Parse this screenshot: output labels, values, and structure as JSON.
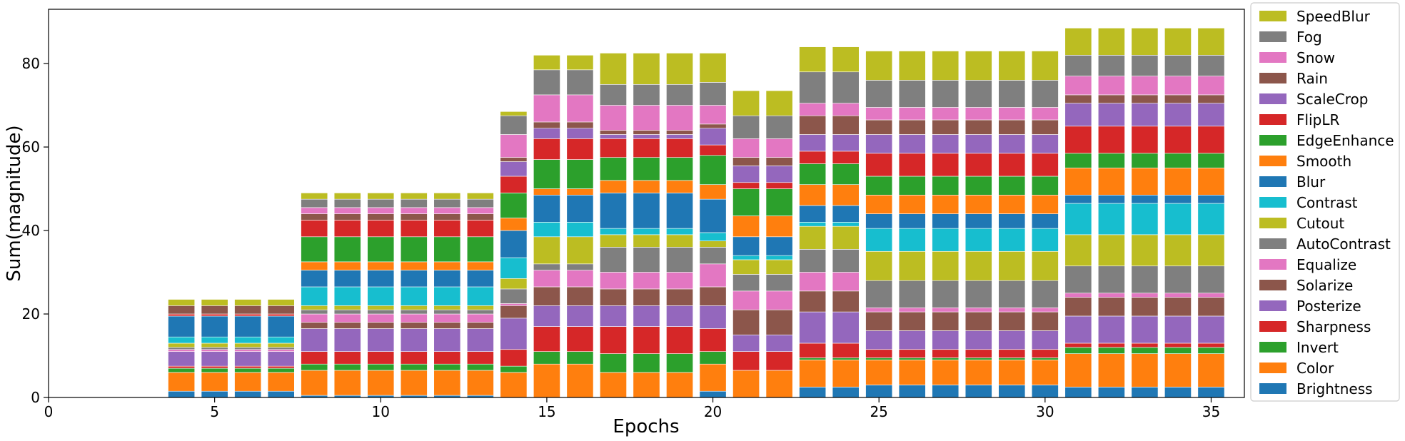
{
  "chart_data": {
    "type": "bar",
    "stacked": true,
    "xlabel": "Epochs",
    "ylabel": "Sum(magnitude)",
    "xlim": [
      0,
      36
    ],
    "ylim": [
      0,
      93
    ],
    "xticks": [
      0,
      5,
      10,
      15,
      20,
      25,
      30,
      35
    ],
    "yticks": [
      0,
      20,
      40,
      60,
      80
    ],
    "grid": false,
    "legend_position": "right-outside",
    "x": [
      4,
      5,
      6,
      7,
      8,
      9,
      10,
      11,
      12,
      13,
      14,
      15,
      16,
      17,
      18,
      19,
      20,
      21,
      22,
      23,
      24,
      25,
      26,
      27,
      28,
      29,
      30,
      31,
      32,
      33,
      34,
      35
    ],
    "series": [
      {
        "name": "Brightness",
        "color": "#1f77b4",
        "values": [
          1.5,
          1.5,
          1.5,
          1.5,
          0.5,
          0.5,
          0.5,
          0.5,
          0.5,
          0.5,
          0,
          0,
          0,
          0,
          0,
          0,
          1.5,
          0,
          0,
          2.5,
          2.5,
          3,
          3,
          3,
          3,
          3,
          3,
          2.5,
          2.5,
          2.5,
          2.5,
          2.5
        ]
      },
      {
        "name": "Color",
        "color": "#ff7f0e",
        "values": [
          4.5,
          4.5,
          4.5,
          4.5,
          6,
          6,
          6,
          6,
          6,
          6,
          6,
          8,
          8,
          6,
          6,
          6,
          6.5,
          6.5,
          6.5,
          6.5,
          6.5,
          6,
          6,
          6,
          6,
          6,
          6,
          8,
          8,
          8,
          8,
          8
        ]
      },
      {
        "name": "Invert",
        "color": "#2ca02c",
        "values": [
          1,
          1,
          1,
          1,
          1.5,
          1.5,
          1.5,
          1.5,
          1.5,
          1.5,
          1.5,
          3,
          3,
          4.5,
          4.5,
          4.5,
          3,
          0,
          0,
          0.5,
          0.5,
          0.5,
          0.5,
          0.5,
          0.5,
          0.5,
          0.5,
          1.5,
          1.5,
          1.5,
          1.5,
          1.5
        ]
      },
      {
        "name": "Sharpness",
        "color": "#d62728",
        "values": [
          0.5,
          0.5,
          0.5,
          0.5,
          3,
          3,
          3,
          3,
          3,
          3,
          4,
          6,
          6,
          6.5,
          6.5,
          6.5,
          5.5,
          4.5,
          4.5,
          3.5,
          3.5,
          2,
          2,
          2,
          2,
          2,
          2,
          1,
          1,
          1,
          1,
          1
        ]
      },
      {
        "name": "Posterize",
        "color": "#9467bd",
        "values": [
          3.5,
          3.5,
          3.5,
          3.5,
          5.5,
          5.5,
          5.5,
          5.5,
          5.5,
          5.5,
          7.5,
          5,
          5,
          5,
          5,
          5,
          5.5,
          4,
          4,
          7.5,
          7.5,
          4.5,
          4.5,
          4.5,
          4.5,
          4.5,
          4.5,
          6.5,
          6.5,
          6.5,
          6.5,
          6.5
        ]
      },
      {
        "name": "Solarize",
        "color": "#8c564b",
        "values": [
          0,
          0,
          0,
          0,
          1.5,
          1.5,
          1.5,
          1.5,
          1.5,
          1.5,
          3,
          4.5,
          4.5,
          4,
          4,
          4,
          4.5,
          6,
          6,
          5,
          5,
          4.5,
          4.5,
          4.5,
          4.5,
          4.5,
          4.5,
          4.5,
          4.5,
          4.5,
          4.5,
          4.5
        ]
      },
      {
        "name": "Equalize",
        "color": "#e377c2",
        "values": [
          0.5,
          0.5,
          0.5,
          0.5,
          2,
          2,
          2,
          2,
          2,
          2,
          0.5,
          4,
          4,
          4,
          4,
          4,
          5.5,
          4.5,
          4.5,
          4.5,
          4.5,
          1,
          1,
          1,
          1,
          1,
          1,
          1,
          1,
          1,
          1,
          1
        ]
      },
      {
        "name": "AutoContrast",
        "color": "#7f7f7f",
        "values": [
          0.5,
          0.5,
          0.5,
          0.5,
          1,
          1,
          1,
          1,
          1,
          1,
          3.5,
          1.5,
          1.5,
          6,
          6,
          6,
          4,
          4,
          4,
          5.5,
          5.5,
          6.5,
          6.5,
          6.5,
          6.5,
          6.5,
          6.5,
          6.5,
          6.5,
          6.5,
          6.5,
          6.5
        ]
      },
      {
        "name": "Cutout",
        "color": "#bcbd22",
        "values": [
          1,
          1,
          1,
          1,
          1,
          1,
          1,
          1,
          1,
          1,
          2.5,
          6.5,
          6.5,
          3,
          3,
          3,
          1.5,
          3.5,
          3.5,
          5.5,
          5.5,
          7,
          7,
          7,
          7,
          7,
          7,
          7.5,
          7.5,
          7.5,
          7.5,
          7.5
        ]
      },
      {
        "name": "Contrast",
        "color": "#17becf",
        "values": [
          1.5,
          1.5,
          1.5,
          1.5,
          4.5,
          4.5,
          4.5,
          4.5,
          4.5,
          4.5,
          5,
          3.5,
          3.5,
          1.5,
          1.5,
          1.5,
          2,
          1,
          1,
          1,
          1,
          5.5,
          5.5,
          5.5,
          5.5,
          5.5,
          5.5,
          7.5,
          7.5,
          7.5,
          7.5,
          7.5
        ]
      },
      {
        "name": "Blur",
        "color": "#1f77b4",
        "values": [
          5,
          5,
          5,
          5,
          4,
          4,
          4,
          4,
          4,
          4,
          6.5,
          6.5,
          6.5,
          8.5,
          8.5,
          8.5,
          8,
          4.5,
          4.5,
          4,
          4,
          3.5,
          3.5,
          3.5,
          3.5,
          3.5,
          3.5,
          2,
          2,
          2,
          2,
          2
        ]
      },
      {
        "name": "Smooth",
        "color": "#ff7f0e",
        "values": [
          0,
          0,
          0,
          0,
          2,
          2,
          2,
          2,
          2,
          2,
          3,
          1.5,
          1.5,
          3,
          3,
          3,
          3.5,
          5,
          5,
          5,
          5,
          4.5,
          4.5,
          4.5,
          4.5,
          4.5,
          4.5,
          6.5,
          6.5,
          6.5,
          6.5,
          6.5
        ]
      },
      {
        "name": "EdgeEnhance",
        "color": "#2ca02c",
        "values": [
          0,
          0,
          0,
          0,
          6,
          6,
          6,
          6,
          6,
          6,
          6,
          7,
          7,
          5.5,
          5.5,
          5.5,
          7,
          6.5,
          6.5,
          5,
          5,
          4.5,
          4.5,
          4.5,
          4.5,
          4.5,
          4.5,
          3.5,
          3.5,
          3.5,
          3.5,
          3.5
        ]
      },
      {
        "name": "FlipLR",
        "color": "#d62728",
        "values": [
          0.5,
          0.5,
          0.5,
          0.5,
          4,
          4,
          4,
          4,
          4,
          4,
          4,
          5,
          5,
          4.5,
          4.5,
          4.5,
          2.5,
          1.5,
          1.5,
          3,
          3,
          5.5,
          5.5,
          5.5,
          5.5,
          5.5,
          5.5,
          6.5,
          6.5,
          6.5,
          6.5,
          6.5
        ]
      },
      {
        "name": "ScaleCrop",
        "color": "#9467bd",
        "values": [
          0,
          0,
          0,
          0,
          0,
          0,
          0,
          0,
          0,
          0,
          3.5,
          2.5,
          2.5,
          1,
          1,
          1,
          4,
          4,
          4,
          4,
          4,
          4.5,
          4.5,
          4.5,
          4.5,
          4.5,
          4.5,
          5.5,
          5.5,
          5.5,
          5.5,
          5.5
        ]
      },
      {
        "name": "Rain",
        "color": "#8c564b",
        "values": [
          2,
          2,
          2,
          2,
          1.5,
          1.5,
          1.5,
          1.5,
          1.5,
          1.5,
          1,
          1.5,
          1.5,
          1,
          1,
          1,
          1,
          2,
          2,
          4.5,
          4.5,
          3.5,
          3.5,
          3.5,
          3.5,
          3.5,
          3.5,
          2,
          2,
          2,
          2,
          2
        ]
      },
      {
        "name": "Snow",
        "color": "#e377c2",
        "values": [
          0,
          0,
          0,
          0,
          1.5,
          1.5,
          1.5,
          1.5,
          1.5,
          1.5,
          5.5,
          6.5,
          6.5,
          6,
          6,
          6,
          4.5,
          4.5,
          4.5,
          3,
          3,
          3,
          3,
          3,
          3,
          3,
          3,
          4.5,
          4.5,
          4.5,
          4.5,
          4.5
        ]
      },
      {
        "name": "Fog",
        "color": "#7f7f7f",
        "values": [
          0,
          0,
          0,
          0,
          2,
          2,
          2,
          2,
          2,
          2,
          4.5,
          6,
          6,
          5,
          5,
          5,
          5.5,
          5.5,
          5.5,
          7.5,
          7.5,
          6.5,
          6.5,
          6.5,
          6.5,
          6.5,
          6.5,
          5,
          5,
          5,
          5,
          5
        ]
      },
      {
        "name": "SpeedBlur",
        "color": "#bcbd22",
        "values": [
          1.5,
          1.5,
          1.5,
          1.5,
          1.5,
          1.5,
          1.5,
          1.5,
          1.5,
          1.5,
          1,
          3.5,
          3.5,
          7.5,
          7.5,
          7.5,
          7,
          6,
          6,
          6,
          6,
          7,
          7,
          7,
          7,
          7,
          7,
          6.5,
          6.5,
          6.5,
          6.5,
          6.5
        ]
      }
    ]
  }
}
